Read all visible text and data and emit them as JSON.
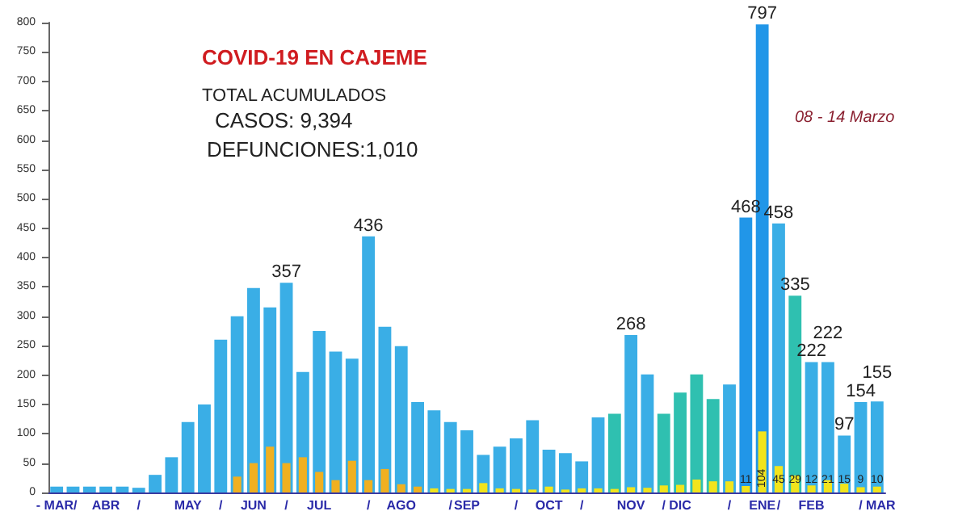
{
  "chart_data": {
    "type": "bar",
    "title": "COVID-19 EN CAJEME",
    "subtitle": "TOTAL ACUMULADOS",
    "annotations": [
      "CASOS: 9,394",
      "DEFUNCIONES:1,010",
      "08 - 14 Marzo"
    ],
    "categories": [
      "- MAR/",
      null,
      null,
      "ABR",
      null,
      "/",
      null,
      null,
      "MAY",
      null,
      "/",
      null,
      "JUN",
      null,
      "/",
      null,
      "JUL",
      null,
      null,
      "/",
      null,
      "AGO",
      null,
      null,
      "/",
      "SEP",
      null,
      null,
      "/",
      null,
      "OCT",
      null,
      "/",
      null,
      null,
      "NOV",
      null,
      "/",
      "DIC",
      null,
      null,
      "/",
      null,
      "ENE",
      "/",
      null,
      "FEB",
      null,
      null,
      null,
      "/ MAR"
    ],
    "series": [
      {
        "values": [
          10,
          10,
          10,
          10,
          10,
          8,
          30,
          60,
          120,
          150,
          260,
          300,
          348,
          315,
          357,
          205,
          275,
          240,
          228,
          436,
          282,
          249,
          154,
          140,
          120,
          106,
          64,
          78,
          92,
          123,
          73,
          67,
          53,
          128,
          134,
          268,
          201,
          134,
          170,
          201,
          159,
          184,
          468,
          797,
          458,
          335,
          222,
          222,
          97,
          154,
          155
        ],
        "colors": [
          "#3aaee6",
          "#3aaee6",
          "#3aaee6",
          "#3aaee6",
          "#3aaee6",
          "#3aaee6",
          "#3aaee6",
          "#3aaee6",
          "#3aaee6",
          "#3aaee6",
          "#3aaee6",
          "#3aaee6",
          "#3aaee6",
          "#3aaee6",
          "#3aaee6",
          "#3aaee6",
          "#3aaee6",
          "#3aaee6",
          "#3aaee6",
          "#3aaee6",
          "#3aaee6",
          "#3aaee6",
          "#3aaee6",
          "#3aaee6",
          "#3aaee6",
          "#3aaee6",
          "#3aaee6",
          "#3aaee6",
          "#3aaee6",
          "#3aaee6",
          "#3aaee6",
          "#3aaee6",
          "#3aaee6",
          "#3aaee6",
          "#2fc0b0",
          "#3aaee6",
          "#3aaee6",
          "#2fc0b0",
          "#2fc0b0",
          "#2fc0b0",
          "#2fc0b0",
          "#3aaee6",
          "#2196e8",
          "#2196e8",
          "#3aaee6",
          "#2fc0b0",
          "#3aaee6",
          "#3aaee6",
          "#3aaee6",
          "#3aaee6",
          "#3aaee6"
        ],
        "value_labels": [
          null,
          null,
          null,
          null,
          null,
          null,
          null,
          null,
          null,
          null,
          null,
          null,
          null,
          null,
          "357",
          null,
          null,
          null,
          null,
          "436",
          null,
          null,
          null,
          null,
          null,
          null,
          null,
          null,
          null,
          null,
          null,
          null,
          null,
          null,
          null,
          "268",
          null,
          null,
          null,
          null,
          null,
          null,
          "468",
          "797",
          "458",
          "335",
          "222",
          "222",
          "97",
          "154",
          "155"
        ]
      },
      {
        "values": [
          0,
          0,
          0,
          0,
          0,
          0,
          0,
          0,
          0,
          0,
          0,
          27,
          50,
          78,
          50,
          60,
          35,
          21,
          54,
          21,
          40,
          14,
          10,
          7,
          6,
          6,
          16,
          7,
          6,
          5,
          10,
          5,
          7,
          7,
          6,
          9,
          8,
          12,
          13,
          22,
          19,
          19,
          11,
          104,
          45,
          29,
          12,
          21,
          15,
          9,
          10
        ],
        "colors": [
          "#f0b020",
          "#f0b020",
          "#f0b020",
          "#f0b020",
          "#f0b020",
          "#f0b020",
          "#f0b020",
          "#f0b020",
          "#f0b020",
          "#f0b020",
          "#f0b020",
          "#f0b020",
          "#f0b020",
          "#f0b020",
          "#f0b020",
          "#f0b020",
          "#f0b020",
          "#f0b020",
          "#f0b020",
          "#f0b020",
          "#f0b020",
          "#f0b020",
          "#f0b020",
          "#f2e41c",
          "#f2e41c",
          "#f2e41c",
          "#f2e41c",
          "#f2e41c",
          "#f2e41c",
          "#f2e41c",
          "#f2e41c",
          "#f2e41c",
          "#f2e41c",
          "#f2e41c",
          "#f2e41c",
          "#f2e41c",
          "#f2e41c",
          "#f2e41c",
          "#f2e41c",
          "#f2e41c",
          "#f2e41c",
          "#f2e41c",
          "#f2e41c",
          "#f2e41c",
          "#f2e41c",
          "#f2e41c",
          "#f2e41c",
          "#f2e41c",
          "#f2e41c",
          "#f2e41c",
          "#f2e41c"
        ],
        "value_labels": [
          null,
          null,
          null,
          null,
          null,
          null,
          null,
          null,
          null,
          null,
          null,
          null,
          null,
          null,
          null,
          null,
          null,
          null,
          null,
          null,
          null,
          null,
          null,
          null,
          null,
          null,
          null,
          null,
          null,
          null,
          null,
          null,
          null,
          null,
          null,
          null,
          null,
          null,
          null,
          null,
          null,
          null,
          "11",
          "104",
          "45",
          "29",
          "12",
          "21",
          "15",
          "9",
          "10"
        ]
      }
    ],
    "ylim": [
      0,
      800
    ],
    "yticks": [
      0,
      50,
      100,
      150,
      200,
      250,
      300,
      350,
      400,
      450,
      500,
      550,
      600,
      650,
      700,
      750,
      800
    ],
    "grid": false
  }
}
